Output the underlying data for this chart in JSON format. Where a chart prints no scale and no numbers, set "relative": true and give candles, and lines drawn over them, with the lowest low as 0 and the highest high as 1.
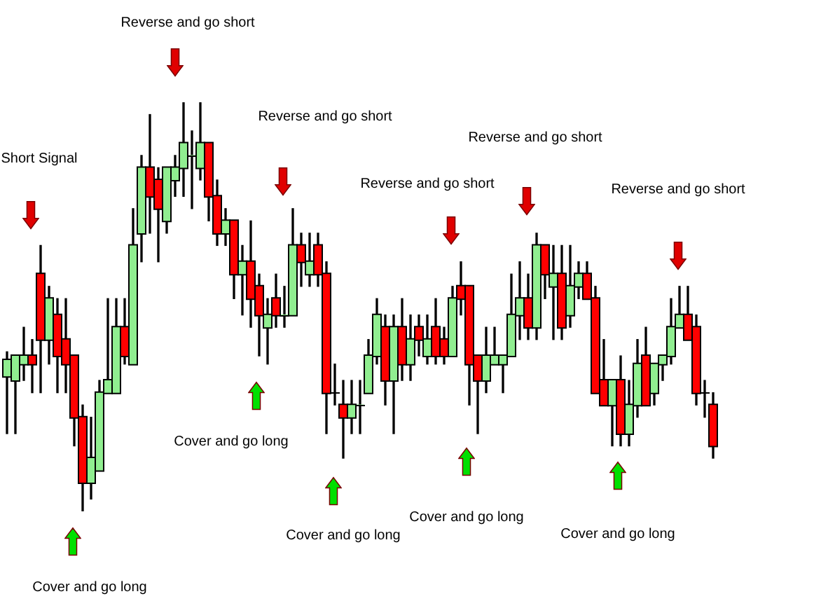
{
  "chart_data": {
    "type": "candlestick",
    "relative": true,
    "categories": [
      null,
      null,
      null,
      null,
      null,
      null,
      null,
      null,
      null,
      null,
      null,
      null,
      null,
      null,
      null,
      null,
      null,
      null,
      null,
      null,
      null,
      null,
      null,
      null,
      null,
      null,
      null,
      null,
      null,
      null,
      null,
      null,
      null,
      null,
      null,
      null,
      null,
      null,
      null,
      null,
      null,
      null,
      null,
      null,
      null,
      null,
      null,
      null,
      null,
      null,
      null,
      null,
      null,
      null,
      null,
      null,
      null,
      null,
      null,
      null,
      null,
      null,
      null,
      null,
      null,
      null,
      null,
      null,
      null,
      null,
      null,
      null,
      null,
      null,
      null,
      null,
      null,
      null,
      null,
      null,
      null,
      null,
      null,
      null,
      null
    ],
    "ohlc": [
      [
        0.33,
        0.39,
        0.19,
        0.37
      ],
      [
        0.32,
        0.38,
        0.19,
        0.38
      ],
      [
        0.36,
        0.45,
        0.32,
        0.38
      ],
      [
        0.38,
        0.42,
        0.29,
        0.36
      ],
      [
        0.58,
        0.65,
        0.29,
        0.42
      ],
      [
        0.42,
        0.55,
        0.36,
        0.52
      ],
      [
        0.48,
        0.52,
        0.29,
        0.38
      ],
      [
        0.42,
        0.52,
        0.29,
        0.36
      ],
      [
        0.38,
        0.38,
        0.16,
        0.23
      ],
      [
        0.23,
        0.26,
        0,
        0.07
      ],
      [
        0.07,
        0.23,
        0.03,
        0.13
      ],
      [
        0.1,
        0.32,
        0.1,
        0.29
      ],
      [
        0.29,
        0.52,
        0.29,
        0.32
      ],
      [
        0.29,
        0.52,
        0.29,
        0.45
      ],
      [
        0.45,
        0.52,
        0.36,
        0.38
      ],
      [
        0.36,
        0.74,
        0.36,
        0.65
      ],
      [
        0.68,
        0.87,
        0.61,
        0.84
      ],
      [
        0.84,
        0.97,
        0.68,
        0.77
      ],
      [
        0.81,
        0.84,
        0.61,
        0.74
      ],
      [
        0.71,
        0.84,
        0.68,
        0.84
      ],
      [
        0.81,
        0.87,
        0.77,
        0.84
      ],
      [
        0.84,
        1,
        0.77,
        0.9
      ],
      [
        0.87,
        0.93,
        0.74,
        0.87
      ],
      [
        0.84,
        1,
        0.81,
        0.9
      ],
      [
        0.9,
        0.9,
        0.71,
        0.77
      ],
      [
        0.77,
        0.81,
        0.65,
        0.68
      ],
      [
        0.68,
        0.74,
        0.65,
        0.71
      ],
      [
        0.71,
        0.71,
        0.52,
        0.58
      ],
      [
        0.58,
        0.65,
        0.48,
        0.61
      ],
      [
        0.61,
        0.71,
        0.45,
        0.52
      ],
      [
        0.55,
        0.58,
        0.38,
        0.48
      ],
      [
        0.45,
        0.52,
        0.36,
        0.48
      ],
      [
        0.52,
        0.58,
        0.45,
        0.48
      ],
      [
        0.48,
        0.55,
        0.45,
        0.48
      ],
      [
        0.48,
        0.74,
        0.48,
        0.65
      ],
      [
        0.65,
        0.68,
        0.55,
        0.61
      ],
      [
        0.58,
        0.68,
        0.55,
        0.61
      ],
      [
        0.65,
        0.68,
        0.55,
        0.58
      ],
      [
        0.58,
        0.61,
        0.19,
        0.29
      ],
      [
        0.29,
        0.36,
        0.26,
        0.29
      ],
      [
        0.26,
        0.32,
        0.13,
        0.23
      ],
      [
        0.23,
        0.32,
        0.19,
        0.26
      ],
      [
        0.26,
        0.32,
        0.19,
        0.26
      ],
      [
        0.29,
        0.42,
        0.29,
        0.38
      ],
      [
        0.38,
        0.52,
        0.36,
        0.48
      ],
      [
        0.45,
        0.48,
        0.26,
        0.32
      ],
      [
        0.32,
        0.48,
        0.19,
        0.45
      ],
      [
        0.45,
        0.52,
        0.32,
        0.36
      ],
      [
        0.36,
        0.48,
        0.32,
        0.42
      ],
      [
        0.45,
        0.48,
        0.38,
        0.42
      ],
      [
        0.38,
        0.48,
        0.36,
        0.42
      ],
      [
        0.45,
        0.52,
        0.36,
        0.38
      ],
      [
        0.42,
        0.45,
        0.36,
        0.38
      ],
      [
        0.38,
        0.55,
        0.38,
        0.52
      ],
      [
        0.55,
        0.61,
        0.48,
        0.52
      ],
      [
        0.55,
        0.55,
        0.26,
        0.36
      ],
      [
        0.38,
        0.38,
        0.19,
        0.32
      ],
      [
        0.32,
        0.45,
        0.29,
        0.38
      ],
      [
        0.36,
        0.45,
        0.36,
        0.38
      ],
      [
        0.36,
        0.38,
        0.29,
        0.38
      ],
      [
        0.38,
        0.58,
        0.38,
        0.48
      ],
      [
        0.48,
        0.61,
        0.42,
        0.52
      ],
      [
        0.52,
        0.58,
        0.42,
        0.45
      ],
      [
        0.45,
        0.68,
        0.42,
        0.65
      ],
      [
        0.65,
        0.65,
        0.52,
        0.58
      ],
      [
        0.55,
        0.65,
        0.42,
        0.58
      ],
      [
        0.58,
        0.65,
        0.42,
        0.45
      ],
      [
        0.48,
        0.65,
        0.45,
        0.55
      ],
      [
        0.55,
        0.61,
        0.52,
        0.58
      ],
      [
        0.58,
        0.61,
        0.52,
        0.52
      ],
      [
        0.52,
        0.55,
        0.29,
        0.29
      ],
      [
        0.32,
        0.42,
        0.26,
        0.26
      ],
      [
        0.26,
        0.32,
        0.16,
        0.32
      ],
      [
        0.32,
        0.38,
        0.16,
        0.19
      ],
      [
        0.19,
        0.32,
        0.16,
        0.26
      ],
      [
        0.26,
        0.42,
        0.23,
        0.36
      ],
      [
        0.38,
        0.45,
        0.26,
        0.26
      ],
      [
        0.29,
        0.36,
        0.26,
        0.36
      ],
      [
        0.36,
        0.38,
        0.32,
        0.38
      ],
      [
        0.38,
        0.52,
        0.36,
        0.45
      ],
      [
        0.45,
        0.55,
        0.45,
        0.48
      ],
      [
        0.48,
        0.55,
        0.42,
        0.42
      ],
      [
        0.45,
        0.48,
        0.26,
        0.29
      ],
      [
        0.29,
        0.32,
        0.23,
        0.29
      ],
      [
        0.26,
        0.29,
        0.13,
        0.16
      ]
    ],
    "colors": [
      "#90ee90",
      "#90ee90",
      "#90ee90",
      "#ff0000",
      "#ff0000",
      "#90ee90",
      "#ff0000",
      "#ff0000",
      "#ff0000",
      "#ff0000",
      "#90ee90",
      "#90ee90",
      "#90ee90",
      "#90ee90",
      "#ff0000",
      "#90ee90",
      "#90ee90",
      "#ff0000",
      "#ff0000",
      "#90ee90",
      "#90ee90",
      "#90ee90",
      "#90ee90",
      "#90ee90",
      "#ff0000",
      "#ff0000",
      "#90ee90",
      "#ff0000",
      "#90ee90",
      "#ff0000",
      "#ff0000",
      "#90ee90",
      "#ff0000",
      "#90ee90",
      "#90ee90",
      "#ff0000",
      "#90ee90",
      "#ff0000",
      "#ff0000",
      "#90ee90",
      "#ff0000",
      "#90ee90",
      "#90ee90",
      "#90ee90",
      "#90ee90",
      "#ff0000",
      "#90ee90",
      "#ff0000",
      "#90ee90",
      "#ff0000",
      "#90ee90",
      "#ff0000",
      "#ff0000",
      "#90ee90",
      "#ff0000",
      "#ff0000",
      "#ff0000",
      "#90ee90",
      "#90ee90",
      "#90ee90",
      "#90ee90",
      "#90ee90",
      "#ff0000",
      "#90ee90",
      "#ff0000",
      "#90ee90",
      "#ff0000",
      "#90ee90",
      "#90ee90",
      "#ff0000",
      "#ff0000",
      "#ff0000",
      "#90ee90",
      "#ff0000",
      "#90ee90",
      "#90ee90",
      "#ff0000",
      "#90ee90",
      "#90ee90",
      "#90ee90",
      "#90ee90",
      "#ff0000",
      "#ff0000",
      "#90ee90",
      "#ff0000"
    ],
    "annotations": [
      "Short Signal",
      "Reverse and go short",
      "Reverse and go short",
      "Reverse and go short",
      "Reverse and go short",
      "Reverse and go short",
      "Cover and go long",
      "Cover and go long",
      "Cover and go long",
      "Cover and go long",
      "Cover and go long"
    ]
  }
}
